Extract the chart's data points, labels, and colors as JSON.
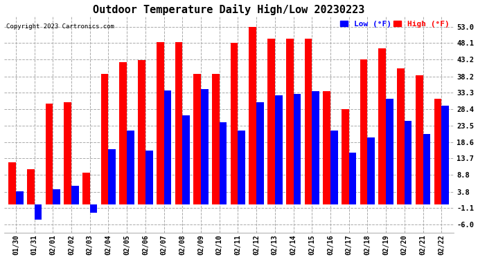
{
  "title": "Outdoor Temperature Daily High/Low 20230223",
  "copyright": "Copyright 2023 Cartronics.com",
  "dates": [
    "01/30",
    "01/31",
    "02/01",
    "02/02",
    "02/03",
    "02/04",
    "02/05",
    "02/06",
    "02/07",
    "02/08",
    "02/09",
    "02/10",
    "02/11",
    "02/12",
    "02/13",
    "02/14",
    "02/15",
    "02/16",
    "02/17",
    "02/18",
    "02/19",
    "02/20",
    "02/21",
    "02/22"
  ],
  "high": [
    12.5,
    10.5,
    30.0,
    30.5,
    9.5,
    39.0,
    42.5,
    43.0,
    48.5,
    48.5,
    39.0,
    39.0,
    48.1,
    53.0,
    49.5,
    49.5,
    49.5,
    33.8,
    28.4,
    43.2,
    46.5,
    40.5,
    38.5,
    31.5
  ],
  "low": [
    4.0,
    -4.5,
    4.5,
    5.5,
    -2.5,
    16.5,
    22.0,
    16.0,
    34.0,
    26.5,
    34.5,
    24.5,
    22.0,
    30.5,
    32.5,
    33.0,
    33.8,
    22.0,
    15.5,
    20.0,
    31.5,
    25.0,
    21.0,
    29.5
  ],
  "high_color": "#FF0000",
  "low_color": "#0000FF",
  "bg_color": "#FFFFFF",
  "grid_color": "#AAAAAA",
  "yticks": [
    -6.0,
    -1.1,
    3.8,
    8.8,
    13.7,
    18.6,
    23.5,
    28.4,
    33.3,
    38.2,
    43.2,
    48.1,
    53.0
  ],
  "ylim": [
    -8.5,
    56.0
  ],
  "title_fontsize": 11,
  "bar_width": 0.4,
  "legend_blue_label": "Low (°F)",
  "legend_red_label": "High (°F)",
  "figsize": [
    6.9,
    3.75
  ],
  "dpi": 100
}
